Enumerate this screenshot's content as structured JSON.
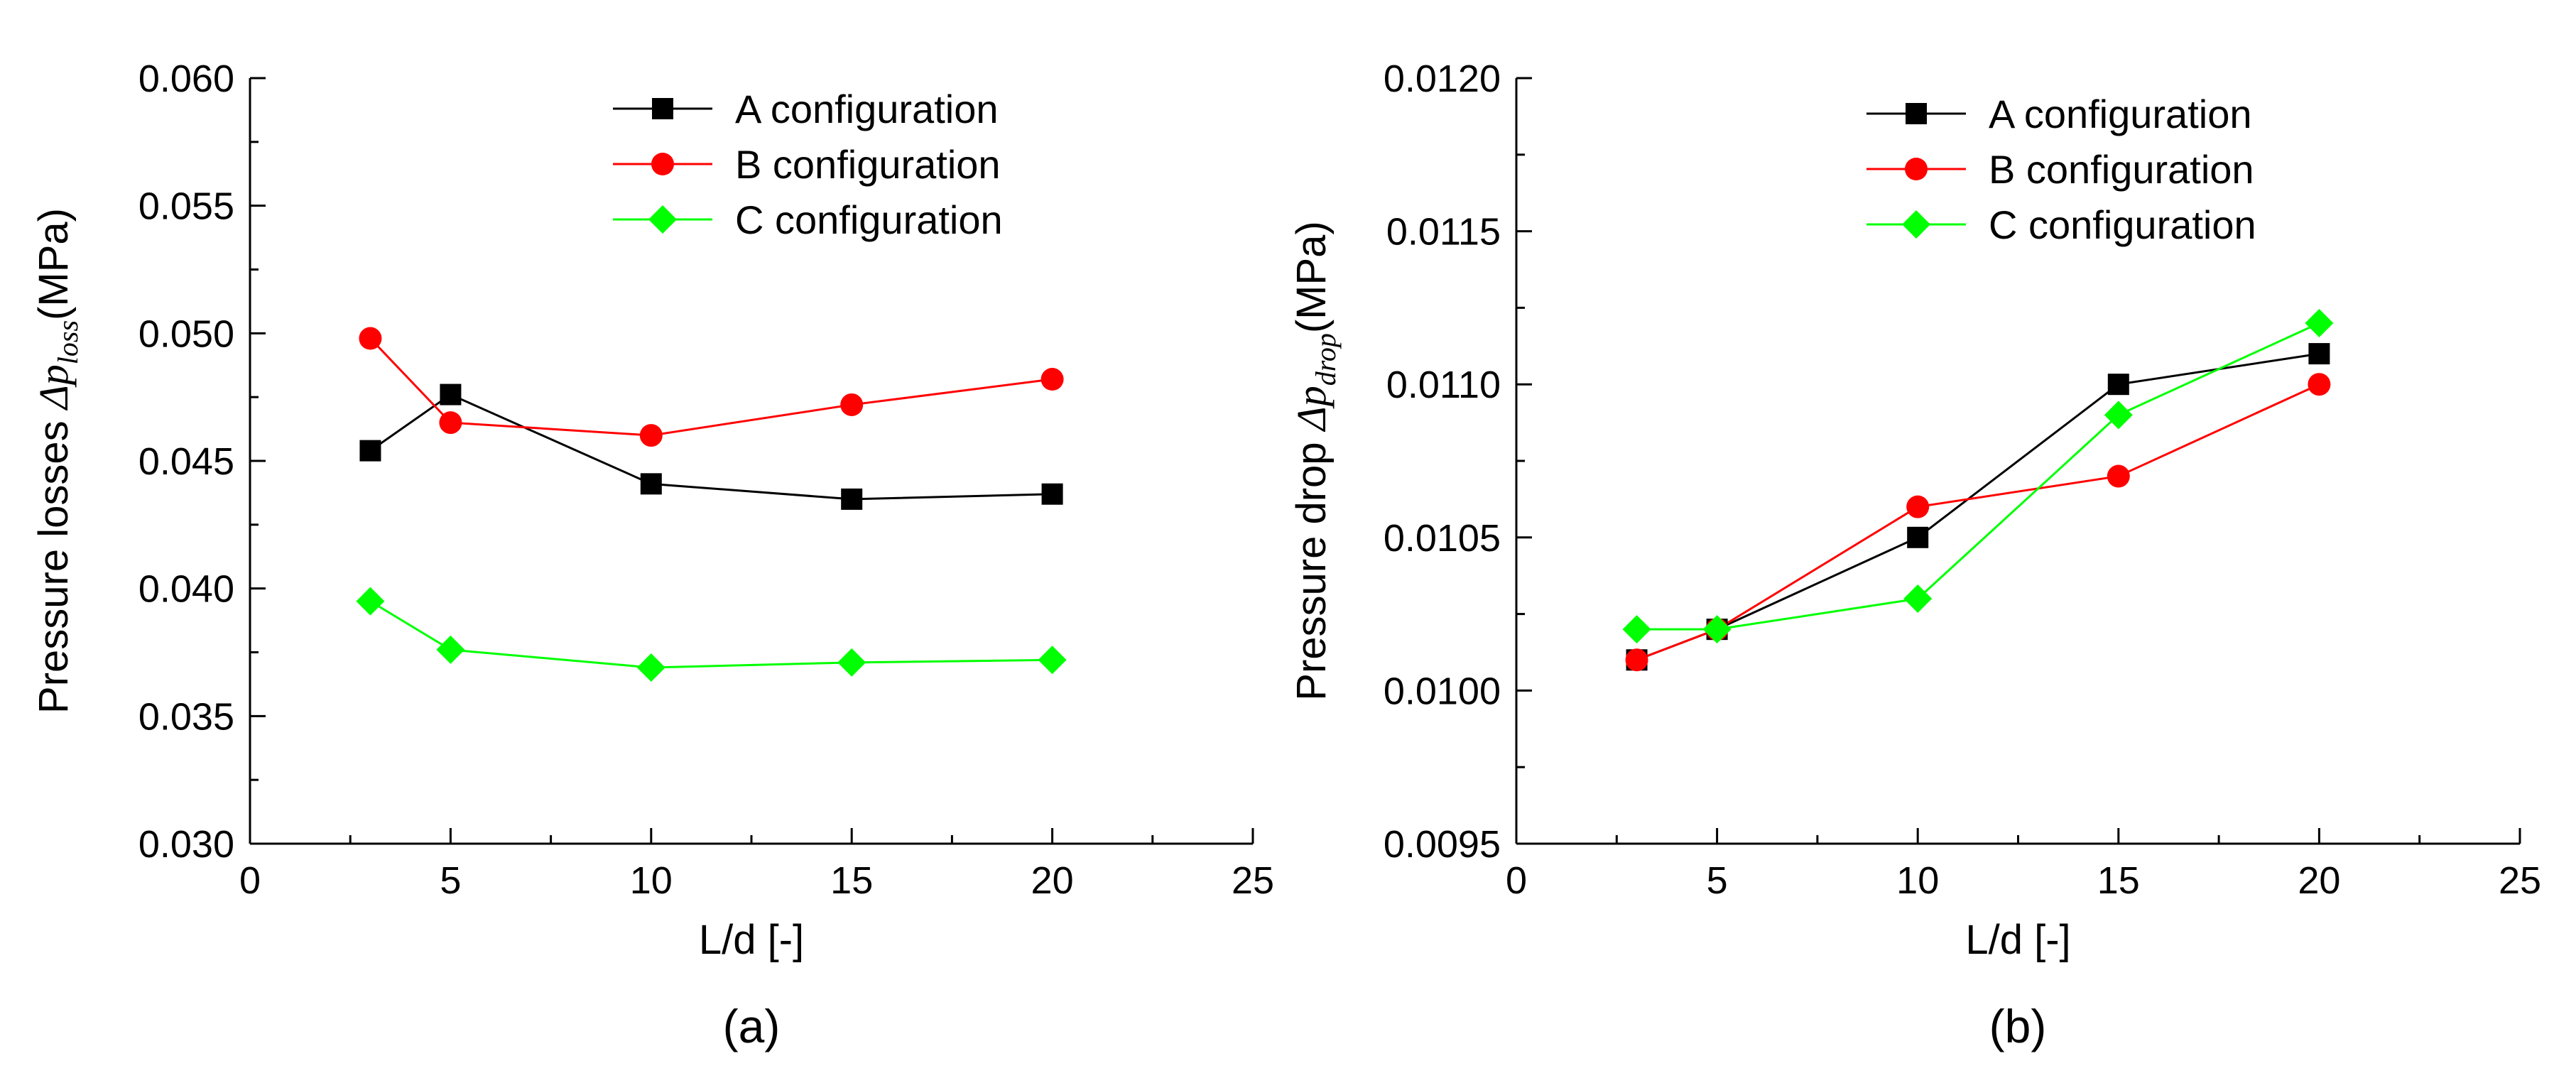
{
  "chart_data": [
    {
      "type": "line",
      "panel_label": "(a)",
      "xlabel": "L/d [-]",
      "ylabel_prefix": "Pressure losses ",
      "ylabel_symbol": "Δp",
      "ylabel_sub": "loss",
      "ylabel_suffix": "(MPa)",
      "xlim": [
        0,
        25
      ],
      "ylim": [
        0.03,
        0.06
      ],
      "xticks": [
        0,
        5,
        10,
        15,
        20,
        25
      ],
      "yticks": [
        0.03,
        0.035,
        0.04,
        0.045,
        0.05,
        0.055,
        0.06
      ],
      "ytick_decimals": 3,
      "legend_position": "top-right",
      "series": [
        {
          "name": "A configuration",
          "marker": "square",
          "color": "#000000",
          "x": [
            3,
            5,
            10,
            15,
            20
          ],
          "y": [
            0.0454,
            0.0476,
            0.0441,
            0.0435,
            0.0437
          ]
        },
        {
          "name": "B configuration",
          "marker": "circle",
          "color": "#ff0000",
          "x": [
            3,
            5,
            10,
            15,
            20
          ],
          "y": [
            0.0498,
            0.0465,
            0.046,
            0.0472,
            0.0482
          ]
        },
        {
          "name": "C configuration",
          "marker": "diamond",
          "color": "#00ff00",
          "x": [
            3,
            5,
            10,
            15,
            20
          ],
          "y": [
            0.0395,
            0.0376,
            0.0369,
            0.0371,
            0.0372
          ]
        }
      ]
    },
    {
      "type": "line",
      "panel_label": "(b)",
      "xlabel": "L/d [-]",
      "ylabel_prefix": "Pressure drop ",
      "ylabel_symbol": "Δp",
      "ylabel_sub": "drop",
      "ylabel_suffix": "(MPa)",
      "xlim": [
        0,
        25
      ],
      "ylim": [
        0.0095,
        0.012
      ],
      "xticks": [
        0,
        5,
        10,
        15,
        20,
        25
      ],
      "yticks": [
        0.0095,
        0.01,
        0.0105,
        0.011,
        0.0115,
        0.012
      ],
      "ytick_decimals": 4,
      "legend_position": "top-right",
      "series": [
        {
          "name": "A configuration",
          "marker": "square",
          "color": "#000000",
          "x": [
            3,
            5,
            10,
            15,
            20
          ],
          "y": [
            0.0101,
            0.0102,
            0.0105,
            0.011,
            0.0111
          ]
        },
        {
          "name": "B configuration",
          "marker": "circle",
          "color": "#ff0000",
          "x": [
            3,
            5,
            10,
            15,
            20
          ],
          "y": [
            0.0101,
            0.0102,
            0.0106,
            0.0107,
            0.011
          ]
        },
        {
          "name": "C configuration",
          "marker": "diamond",
          "color": "#00ff00",
          "x": [
            3,
            5,
            10,
            15,
            20
          ],
          "y": [
            0.0102,
            0.0102,
            0.0103,
            0.0109,
            0.0112
          ]
        }
      ]
    }
  ]
}
